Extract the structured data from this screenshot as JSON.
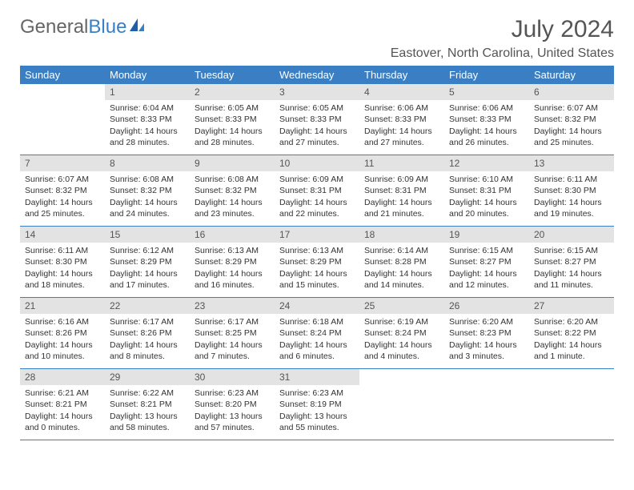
{
  "logo": {
    "text1": "General",
    "text2": "Blue"
  },
  "title": "July 2024",
  "location": "Eastover, North Carolina, United States",
  "colors": {
    "header_bg": "#3a7fc4",
    "header_text": "#ffffff",
    "daynum_bg": "#e3e3e3",
    "border": "#3a7fc4"
  },
  "weekdays": [
    "Sunday",
    "Monday",
    "Tuesday",
    "Wednesday",
    "Thursday",
    "Friday",
    "Saturday"
  ],
  "weeks": [
    [
      {
        "n": "",
        "sr": "",
        "ss": "",
        "dl": ""
      },
      {
        "n": "1",
        "sr": "Sunrise: 6:04 AM",
        "ss": "Sunset: 8:33 PM",
        "dl": "Daylight: 14 hours and 28 minutes."
      },
      {
        "n": "2",
        "sr": "Sunrise: 6:05 AM",
        "ss": "Sunset: 8:33 PM",
        "dl": "Daylight: 14 hours and 28 minutes."
      },
      {
        "n": "3",
        "sr": "Sunrise: 6:05 AM",
        "ss": "Sunset: 8:33 PM",
        "dl": "Daylight: 14 hours and 27 minutes."
      },
      {
        "n": "4",
        "sr": "Sunrise: 6:06 AM",
        "ss": "Sunset: 8:33 PM",
        "dl": "Daylight: 14 hours and 27 minutes."
      },
      {
        "n": "5",
        "sr": "Sunrise: 6:06 AM",
        "ss": "Sunset: 8:33 PM",
        "dl": "Daylight: 14 hours and 26 minutes."
      },
      {
        "n": "6",
        "sr": "Sunrise: 6:07 AM",
        "ss": "Sunset: 8:32 PM",
        "dl": "Daylight: 14 hours and 25 minutes."
      }
    ],
    [
      {
        "n": "7",
        "sr": "Sunrise: 6:07 AM",
        "ss": "Sunset: 8:32 PM",
        "dl": "Daylight: 14 hours and 25 minutes."
      },
      {
        "n": "8",
        "sr": "Sunrise: 6:08 AM",
        "ss": "Sunset: 8:32 PM",
        "dl": "Daylight: 14 hours and 24 minutes."
      },
      {
        "n": "9",
        "sr": "Sunrise: 6:08 AM",
        "ss": "Sunset: 8:32 PM",
        "dl": "Daylight: 14 hours and 23 minutes."
      },
      {
        "n": "10",
        "sr": "Sunrise: 6:09 AM",
        "ss": "Sunset: 8:31 PM",
        "dl": "Daylight: 14 hours and 22 minutes."
      },
      {
        "n": "11",
        "sr": "Sunrise: 6:09 AM",
        "ss": "Sunset: 8:31 PM",
        "dl": "Daylight: 14 hours and 21 minutes."
      },
      {
        "n": "12",
        "sr": "Sunrise: 6:10 AM",
        "ss": "Sunset: 8:31 PM",
        "dl": "Daylight: 14 hours and 20 minutes."
      },
      {
        "n": "13",
        "sr": "Sunrise: 6:11 AM",
        "ss": "Sunset: 8:30 PM",
        "dl": "Daylight: 14 hours and 19 minutes."
      }
    ],
    [
      {
        "n": "14",
        "sr": "Sunrise: 6:11 AM",
        "ss": "Sunset: 8:30 PM",
        "dl": "Daylight: 14 hours and 18 minutes."
      },
      {
        "n": "15",
        "sr": "Sunrise: 6:12 AM",
        "ss": "Sunset: 8:29 PM",
        "dl": "Daylight: 14 hours and 17 minutes."
      },
      {
        "n": "16",
        "sr": "Sunrise: 6:13 AM",
        "ss": "Sunset: 8:29 PM",
        "dl": "Daylight: 14 hours and 16 minutes."
      },
      {
        "n": "17",
        "sr": "Sunrise: 6:13 AM",
        "ss": "Sunset: 8:29 PM",
        "dl": "Daylight: 14 hours and 15 minutes."
      },
      {
        "n": "18",
        "sr": "Sunrise: 6:14 AM",
        "ss": "Sunset: 8:28 PM",
        "dl": "Daylight: 14 hours and 14 minutes."
      },
      {
        "n": "19",
        "sr": "Sunrise: 6:15 AM",
        "ss": "Sunset: 8:27 PM",
        "dl": "Daylight: 14 hours and 12 minutes."
      },
      {
        "n": "20",
        "sr": "Sunrise: 6:15 AM",
        "ss": "Sunset: 8:27 PM",
        "dl": "Daylight: 14 hours and 11 minutes."
      }
    ],
    [
      {
        "n": "21",
        "sr": "Sunrise: 6:16 AM",
        "ss": "Sunset: 8:26 PM",
        "dl": "Daylight: 14 hours and 10 minutes."
      },
      {
        "n": "22",
        "sr": "Sunrise: 6:17 AM",
        "ss": "Sunset: 8:26 PM",
        "dl": "Daylight: 14 hours and 8 minutes."
      },
      {
        "n": "23",
        "sr": "Sunrise: 6:17 AM",
        "ss": "Sunset: 8:25 PM",
        "dl": "Daylight: 14 hours and 7 minutes."
      },
      {
        "n": "24",
        "sr": "Sunrise: 6:18 AM",
        "ss": "Sunset: 8:24 PM",
        "dl": "Daylight: 14 hours and 6 minutes."
      },
      {
        "n": "25",
        "sr": "Sunrise: 6:19 AM",
        "ss": "Sunset: 8:24 PM",
        "dl": "Daylight: 14 hours and 4 minutes."
      },
      {
        "n": "26",
        "sr": "Sunrise: 6:20 AM",
        "ss": "Sunset: 8:23 PM",
        "dl": "Daylight: 14 hours and 3 minutes."
      },
      {
        "n": "27",
        "sr": "Sunrise: 6:20 AM",
        "ss": "Sunset: 8:22 PM",
        "dl": "Daylight: 14 hours and 1 minute."
      }
    ],
    [
      {
        "n": "28",
        "sr": "Sunrise: 6:21 AM",
        "ss": "Sunset: 8:21 PM",
        "dl": "Daylight: 14 hours and 0 minutes."
      },
      {
        "n": "29",
        "sr": "Sunrise: 6:22 AM",
        "ss": "Sunset: 8:21 PM",
        "dl": "Daylight: 13 hours and 58 minutes."
      },
      {
        "n": "30",
        "sr": "Sunrise: 6:23 AM",
        "ss": "Sunset: 8:20 PM",
        "dl": "Daylight: 13 hours and 57 minutes."
      },
      {
        "n": "31",
        "sr": "Sunrise: 6:23 AM",
        "ss": "Sunset: 8:19 PM",
        "dl": "Daylight: 13 hours and 55 minutes."
      },
      {
        "n": "",
        "sr": "",
        "ss": "",
        "dl": ""
      },
      {
        "n": "",
        "sr": "",
        "ss": "",
        "dl": ""
      },
      {
        "n": "",
        "sr": "",
        "ss": "",
        "dl": ""
      }
    ]
  ]
}
